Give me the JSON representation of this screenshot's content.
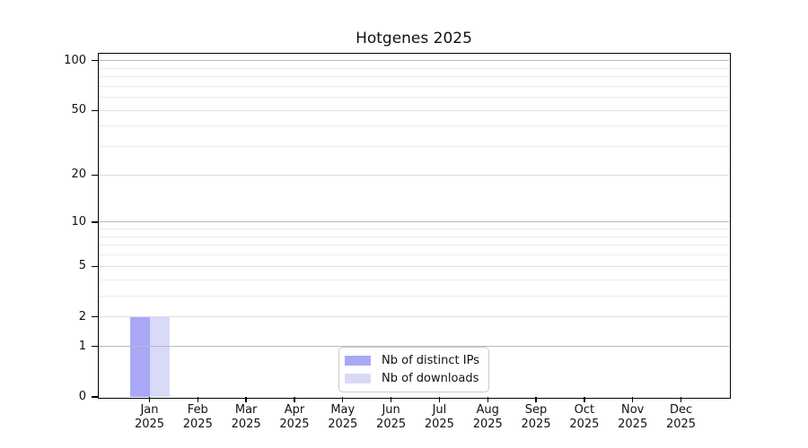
{
  "chart_data": {
    "type": "bar",
    "title": "Hotgenes 2025",
    "x_categories": [
      {
        "month": "Jan",
        "year": "2025"
      },
      {
        "month": "Feb",
        "year": "2025"
      },
      {
        "month": "Mar",
        "year": "2025"
      },
      {
        "month": "Apr",
        "year": "2025"
      },
      {
        "month": "May",
        "year": "2025"
      },
      {
        "month": "Jun",
        "year": "2025"
      },
      {
        "month": "Jul",
        "year": "2025"
      },
      {
        "month": "Aug",
        "year": "2025"
      },
      {
        "month": "Sep",
        "year": "2025"
      },
      {
        "month": "Oct",
        "year": "2025"
      },
      {
        "month": "Nov",
        "year": "2025"
      },
      {
        "month": "Dec",
        "year": "2025"
      }
    ],
    "series": [
      {
        "name": "Nb of distinct IPs",
        "color": "#a8a8f7",
        "values": [
          2,
          0,
          0,
          0,
          0,
          0,
          0,
          0,
          0,
          0,
          0,
          0
        ]
      },
      {
        "name": "Nb of downloads",
        "color": "#d9d9f8",
        "values": [
          2,
          0,
          0,
          0,
          0,
          0,
          0,
          0,
          0,
          0,
          0,
          0
        ]
      }
    ],
    "y_axis": {
      "scale": "log1p",
      "min": 0,
      "max": 110,
      "ticks": [
        0,
        1,
        2,
        5,
        10,
        20,
        50,
        100
      ],
      "minor_ticks": [
        3,
        4,
        6,
        7,
        8,
        9,
        30,
        40,
        60,
        70,
        80,
        90
      ],
      "decade_ticks": [
        1,
        10,
        100
      ]
    },
    "grid": {
      "decade_color": "#b9b9b9",
      "major_color": "#dedede",
      "minor_color": "#ececec"
    },
    "legend": {
      "position": "bottom-center"
    },
    "style": {
      "text_color": "#111111",
      "spine_color": "#000000",
      "background": "#ffffff"
    }
  }
}
